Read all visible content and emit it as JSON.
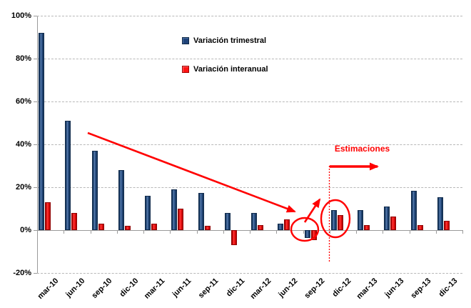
{
  "legend": [
    {
      "label": "Variación trimestral",
      "color": "#17375E"
    },
    {
      "label": "Variación interanual",
      "color": "#FF0000"
    }
  ],
  "annotations": {
    "estimaciones_label": "Estimaciones",
    "accent_color": "#FF0000",
    "highlighted_categories": [
      "sep-12",
      "dic-12"
    ],
    "estimation_boundary_category": "dic-12"
  },
  "chart_data": {
    "type": "bar",
    "title": "",
    "xlabel": "",
    "ylabel": "",
    "categories": [
      "mar-10",
      "jun-10",
      "sep-10",
      "dic-10",
      "mar-11",
      "jun-11",
      "sep-11",
      "dic-11",
      "mar-12",
      "jun-12",
      "sep-12",
      "dic-12",
      "mar-13",
      "jun-13",
      "sep-13",
      "dic-13"
    ],
    "series": [
      {
        "name": "Variación trimestral",
        "color": "#17375E",
        "values": [
          92,
          51,
          37,
          28,
          16,
          19,
          17.5,
          8,
          8,
          3,
          -3.5,
          9.5,
          9.5,
          11,
          18.5,
          15.5
        ]
      },
      {
        "name": "Variación interanual",
        "color": "#FF0000",
        "values": [
          13,
          8,
          3,
          2,
          3,
          10,
          2,
          -7,
          2.5,
          5,
          -4.5,
          7,
          2.5,
          6.5,
          2.5,
          4.5
        ]
      }
    ],
    "yticks": [
      "100%",
      "80%",
      "60%",
      "40%",
      "20%",
      "0%",
      "-20%"
    ],
    "ylim": [
      -20,
      100
    ],
    "grid": "horizontal-dashed",
    "legend_position": "top-center"
  }
}
